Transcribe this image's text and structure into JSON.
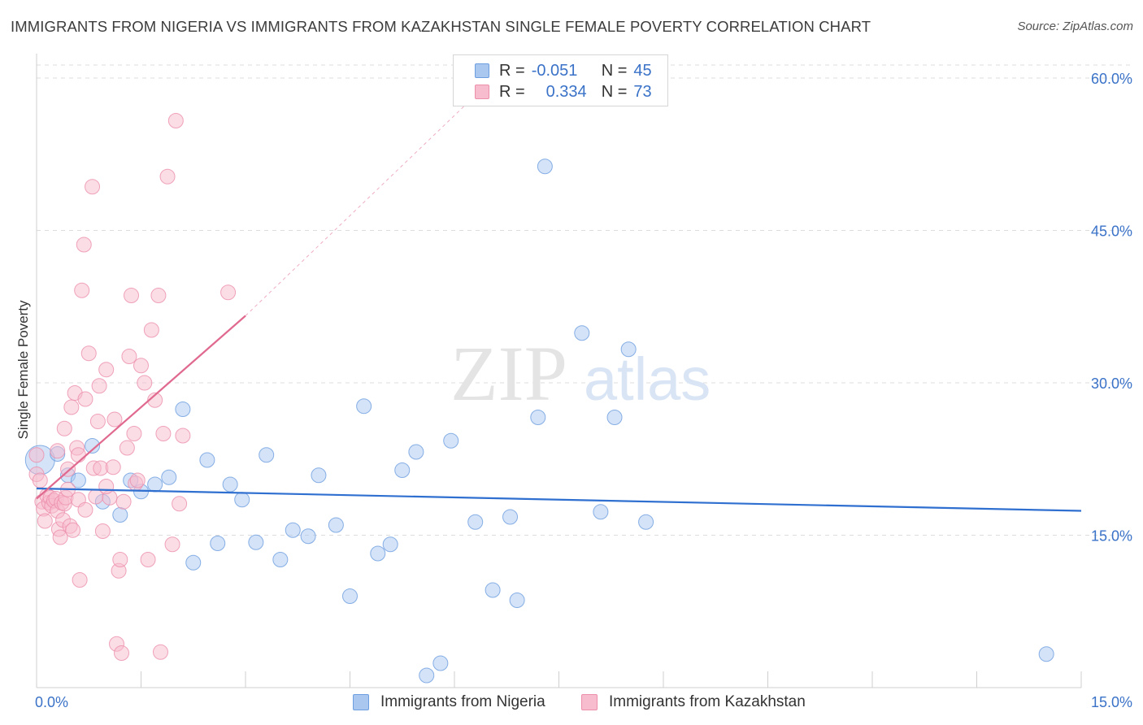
{
  "header": {
    "title": "IMMIGRANTS FROM NIGERIA VS IMMIGRANTS FROM KAZAKHSTAN SINGLE FEMALE POVERTY CORRELATION CHART",
    "source": "Source: ZipAtlas.com"
  },
  "watermark": {
    "zip": "ZIP",
    "atlas": "atlas"
  },
  "stats_legend": {
    "nigeria": {
      "r_label": "R =",
      "r_value": "-0.051",
      "n_label": "N =",
      "n_value": "45"
    },
    "kazakhstan": {
      "r_label": "R =",
      "r_value": "0.334",
      "n_label": "N =",
      "n_value": "73"
    }
  },
  "colors": {
    "nigeria_fill": "#aac8ef",
    "nigeria_stroke": "#6d9ee0",
    "nigeria_line": "#2f6fd0",
    "kazakhstan_fill": "#f7bccd",
    "kazakhstan_stroke": "#ec8fab",
    "kazakhstan_line": "#e0698f",
    "axis_label": "#3a72c8",
    "grid": "#dddddd"
  },
  "chart_data": {
    "type": "scatter",
    "title": "IMMIGRANTS FROM NIGERIA VS IMMIGRANTS FROM KAZAKHSTAN SINGLE FEMALE POVERTY CORRELATION CHART",
    "xlabel": "",
    "ylabel": "Single Female Poverty",
    "xlim": [
      0,
      15
    ],
    "ylim": [
      0,
      60
    ],
    "x_tick_labels": [
      {
        "value": 0,
        "label": "0.0%"
      },
      {
        "value": 15,
        "label": "15.0%"
      }
    ],
    "y_tick_labels": [
      {
        "value": 15,
        "label": "15.0%"
      },
      {
        "value": 30,
        "label": "30.0%"
      },
      {
        "value": 45,
        "label": "45.0%"
      },
      {
        "value": 60,
        "label": "60.0%"
      }
    ],
    "grid": true,
    "legend_position": "bottom",
    "series": [
      {
        "name": "Immigrants from Nigeria",
        "r": -0.051,
        "n": 45,
        "trend": {
          "x0": 0,
          "y0": 19.6,
          "x1": 15,
          "y1": 17.4
        },
        "points": [
          {
            "x": 0.05,
            "y": 22.4,
            "big": true
          },
          {
            "x": 0.3,
            "y": 23.0
          },
          {
            "x": 0.45,
            "y": 20.9
          },
          {
            "x": 0.6,
            "y": 20.4
          },
          {
            "x": 0.8,
            "y": 23.8
          },
          {
            "x": 0.95,
            "y": 18.3
          },
          {
            "x": 1.2,
            "y": 17.0
          },
          {
            "x": 1.35,
            "y": 20.4
          },
          {
            "x": 1.5,
            "y": 19.3
          },
          {
            "x": 1.7,
            "y": 20.0
          },
          {
            "x": 1.9,
            "y": 20.7
          },
          {
            "x": 2.1,
            "y": 27.4
          },
          {
            "x": 2.25,
            "y": 12.3
          },
          {
            "x": 2.45,
            "y": 22.4
          },
          {
            "x": 2.6,
            "y": 14.2
          },
          {
            "x": 2.78,
            "y": 20.0
          },
          {
            "x": 2.95,
            "y": 18.5
          },
          {
            "x": 3.15,
            "y": 14.3
          },
          {
            "x": 3.3,
            "y": 22.9
          },
          {
            "x": 3.5,
            "y": 12.6
          },
          {
            "x": 3.68,
            "y": 15.5
          },
          {
            "x": 3.9,
            "y": 14.9
          },
          {
            "x": 4.05,
            "y": 20.9
          },
          {
            "x": 4.3,
            "y": 16.0
          },
          {
            "x": 4.5,
            "y": 9.0
          },
          {
            "x": 4.7,
            "y": 27.7
          },
          {
            "x": 4.9,
            "y": 13.2
          },
          {
            "x": 5.08,
            "y": 14.1
          },
          {
            "x": 5.25,
            "y": 21.4
          },
          {
            "x": 5.45,
            "y": 23.2
          },
          {
            "x": 5.6,
            "y": 1.2
          },
          {
            "x": 5.8,
            "y": 2.4
          },
          {
            "x": 5.95,
            "y": 24.3
          },
          {
            "x": 6.3,
            "y": 16.3
          },
          {
            "x": 6.55,
            "y": 9.6
          },
          {
            "x": 6.8,
            "y": 16.8
          },
          {
            "x": 6.9,
            "y": 8.6
          },
          {
            "x": 7.2,
            "y": 26.6
          },
          {
            "x": 7.3,
            "y": 51.3
          },
          {
            "x": 7.83,
            "y": 34.9
          },
          {
            "x": 8.1,
            "y": 17.3
          },
          {
            "x": 8.3,
            "y": 26.6
          },
          {
            "x": 8.5,
            "y": 33.3
          },
          {
            "x": 8.75,
            "y": 16.3
          },
          {
            "x": 14.5,
            "y": 3.3
          }
        ]
      },
      {
        "name": "Immigrants from Kazakhstan",
        "r": 0.334,
        "n": 73,
        "trend": {
          "x0": 0,
          "y0": 18.6,
          "x1": 3.0,
          "y1": 36.6
        },
        "trend_extension": {
          "x0": 3.0,
          "y0": 36.6,
          "x1": 6.5,
          "y1": 59.6
        },
        "points": [
          {
            "x": 0.0,
            "y": 22.9
          },
          {
            "x": 0.0,
            "y": 21.0
          },
          {
            "x": 0.05,
            "y": 20.4
          },
          {
            "x": 0.08,
            "y": 18.3
          },
          {
            "x": 0.1,
            "y": 17.6
          },
          {
            "x": 0.12,
            "y": 16.4
          },
          {
            "x": 0.15,
            "y": 18.9
          },
          {
            "x": 0.18,
            "y": 18.2
          },
          {
            "x": 0.2,
            "y": 18.7
          },
          {
            "x": 0.22,
            "y": 17.9
          },
          {
            "x": 0.25,
            "y": 18.4
          },
          {
            "x": 0.28,
            "y": 18.6
          },
          {
            "x": 0.3,
            "y": 17.4
          },
          {
            "x": 0.3,
            "y": 23.3
          },
          {
            "x": 0.32,
            "y": 15.6
          },
          {
            "x": 0.34,
            "y": 14.8
          },
          {
            "x": 0.36,
            "y": 18.2
          },
          {
            "x": 0.38,
            "y": 16.5
          },
          {
            "x": 0.4,
            "y": 18.1
          },
          {
            "x": 0.4,
            "y": 25.5
          },
          {
            "x": 0.42,
            "y": 18.7
          },
          {
            "x": 0.45,
            "y": 21.5
          },
          {
            "x": 0.45,
            "y": 19.5
          },
          {
            "x": 0.48,
            "y": 15.9
          },
          {
            "x": 0.5,
            "y": 27.6
          },
          {
            "x": 0.52,
            "y": 15.5
          },
          {
            "x": 0.55,
            "y": 29.0
          },
          {
            "x": 0.58,
            "y": 23.6
          },
          {
            "x": 0.6,
            "y": 22.9
          },
          {
            "x": 0.62,
            "y": 10.6
          },
          {
            "x": 0.65,
            "y": 39.1
          },
          {
            "x": 0.68,
            "y": 43.6
          },
          {
            "x": 0.7,
            "y": 28.4
          },
          {
            "x": 0.75,
            "y": 32.9
          },
          {
            "x": 0.8,
            "y": 49.3
          },
          {
            "x": 0.82,
            "y": 21.6
          },
          {
            "x": 0.85,
            "y": 18.8
          },
          {
            "x": 0.88,
            "y": 26.2
          },
          {
            "x": 0.9,
            "y": 29.7
          },
          {
            "x": 0.92,
            "y": 21.6
          },
          {
            "x": 0.95,
            "y": 15.4
          },
          {
            "x": 1.0,
            "y": 31.3
          },
          {
            "x": 1.05,
            "y": 18.7
          },
          {
            "x": 1.1,
            "y": 21.7
          },
          {
            "x": 1.12,
            "y": 26.4
          },
          {
            "x": 1.15,
            "y": 4.3
          },
          {
            "x": 1.18,
            "y": 11.5
          },
          {
            "x": 1.2,
            "y": 12.6
          },
          {
            "x": 1.22,
            "y": 3.4
          },
          {
            "x": 1.25,
            "y": 18.3
          },
          {
            "x": 1.3,
            "y": 23.6
          },
          {
            "x": 1.33,
            "y": 32.6
          },
          {
            "x": 1.36,
            "y": 38.6
          },
          {
            "x": 1.4,
            "y": 25.0
          },
          {
            "x": 1.42,
            "y": 20.1
          },
          {
            "x": 1.45,
            "y": 20.4
          },
          {
            "x": 1.5,
            "y": 31.7
          },
          {
            "x": 1.55,
            "y": 30.0
          },
          {
            "x": 1.6,
            "y": 12.6
          },
          {
            "x": 1.65,
            "y": 35.2
          },
          {
            "x": 1.7,
            "y": 28.3
          },
          {
            "x": 1.75,
            "y": 38.6
          },
          {
            "x": 1.78,
            "y": 3.5
          },
          {
            "x": 1.82,
            "y": 25.0
          },
          {
            "x": 1.88,
            "y": 50.3
          },
          {
            "x": 1.95,
            "y": 14.1
          },
          {
            "x": 2.0,
            "y": 55.8
          },
          {
            "x": 2.05,
            "y": 18.1
          },
          {
            "x": 2.1,
            "y": 24.8
          },
          {
            "x": 2.75,
            "y": 38.9
          },
          {
            "x": 1.0,
            "y": 19.8
          },
          {
            "x": 0.6,
            "y": 18.5
          },
          {
            "x": 0.7,
            "y": 17.5
          }
        ]
      }
    ]
  },
  "bottom_legend": {
    "nigeria": "Immigrants from Nigeria",
    "kazakhstan": "Immigrants from Kazakhstan"
  }
}
